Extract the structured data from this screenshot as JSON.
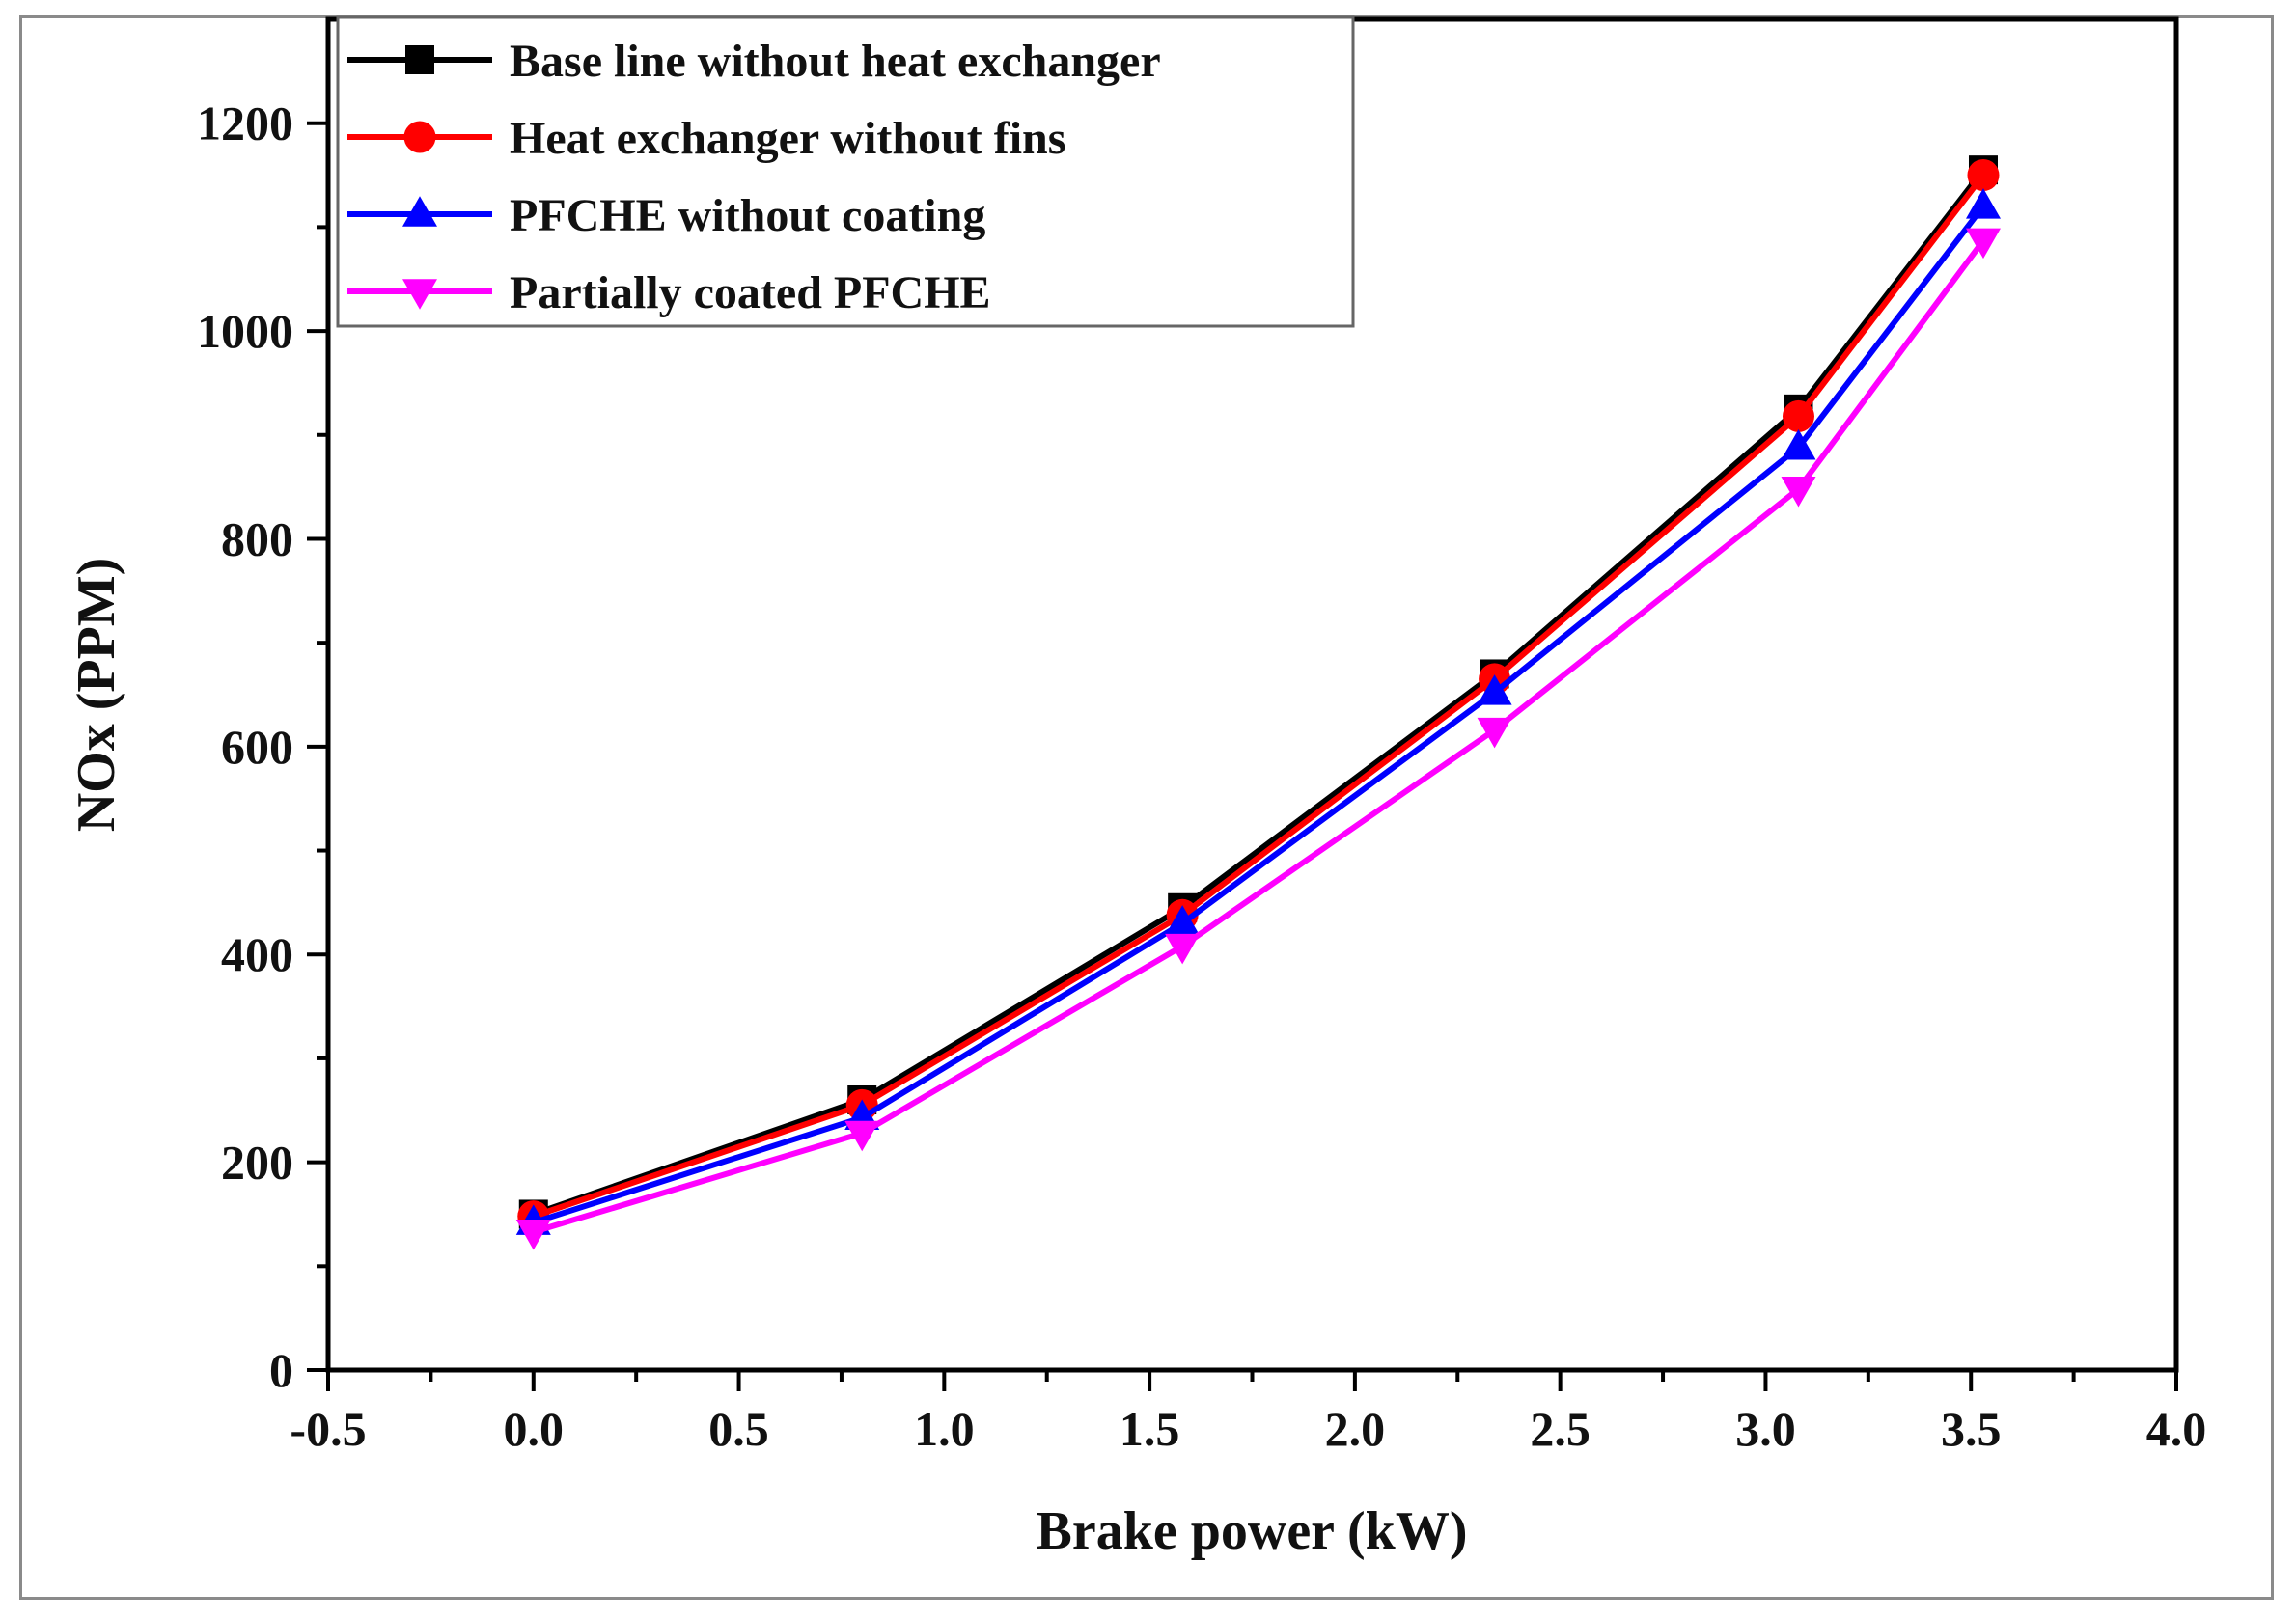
{
  "chart_data": {
    "type": "line",
    "title": "",
    "xlabel": "Brake power (kW)",
    "ylabel": "NOx (PPM)",
    "xlim": [
      -0.5,
      4.0
    ],
    "ylim": [
      0,
      1300
    ],
    "xticks": [
      -0.5,
      0.0,
      0.5,
      1.0,
      1.5,
      2.0,
      2.5,
      3.0,
      3.5,
      4.0
    ],
    "xtick_labels": [
      "-0.5",
      "0.0",
      "0.5",
      "1.0",
      "1.5",
      "2.0",
      "2.5",
      "3.0",
      "3.5",
      "4.0"
    ],
    "yticks": [
      0,
      200,
      400,
      600,
      800,
      1000,
      1200
    ],
    "ytick_labels": [
      "0",
      "200",
      "400",
      "600",
      "800",
      "1000",
      "1200"
    ],
    "grid": false,
    "legend_position": "top-left",
    "x": [
      0.0,
      0.8,
      1.58,
      2.34,
      3.08,
      3.53
    ],
    "series": [
      {
        "name": "Base line without heat exchanger",
        "color": "#000000",
        "marker": "square",
        "values": [
          150,
          260,
          445,
          670,
          925,
          1155
        ]
      },
      {
        "name": "Heat exchanger without fins",
        "color": "#ff0000",
        "marker": "circle",
        "values": [
          148,
          255,
          438,
          665,
          918,
          1150
        ]
      },
      {
        "name": "PFCHE without coating",
        "color": "#0000ff",
        "marker": "triangle-up",
        "values": [
          142,
          243,
          430,
          652,
          888,
          1120
        ]
      },
      {
        "name": "Partially coated PFCHE",
        "color": "#ff00ff",
        "marker": "triangle-down",
        "values": [
          133,
          228,
          408,
          616,
          848,
          1087
        ]
      }
    ]
  }
}
